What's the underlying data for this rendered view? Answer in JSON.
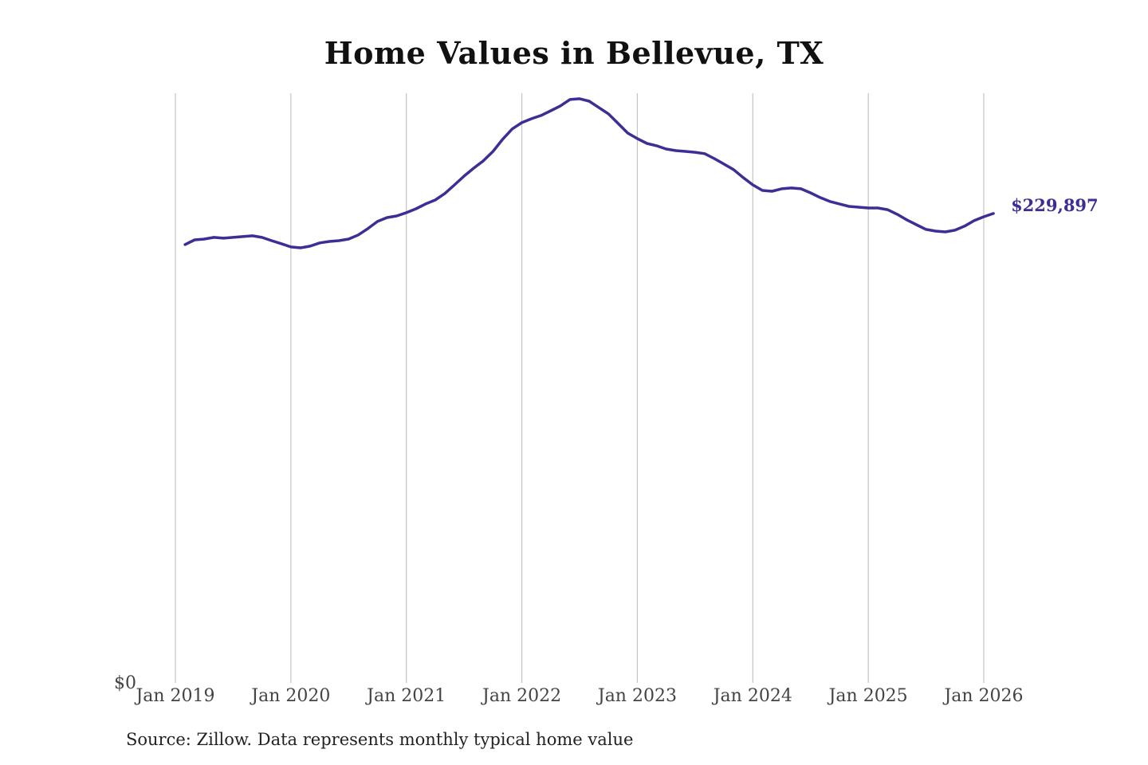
{
  "chart_data": {
    "type": "line",
    "title": "Home Values in Bellevue, TX",
    "xlabel": "",
    "ylabel": "",
    "source": "Source: Zillow. Data represents monthly typical home value",
    "ylim": [
      0,
      288800
    ],
    "y_tick_labels": [
      "$0"
    ],
    "x_tick_labels": [
      "Jan 2019",
      "Jan 2020",
      "Jan 2021",
      "Jan 2022",
      "Jan 2023",
      "Jan 2024",
      "Jan 2025",
      "Jan 2026"
    ],
    "grid": "vertical",
    "line_color": "#3b2f96",
    "end_label": "$229,897",
    "series": [
      {
        "name": "Typical home value",
        "start": "Feb 2019",
        "frequency": "monthly",
        "values": [
          214700,
          217000,
          217400,
          218200,
          217800,
          218200,
          218600,
          219000,
          218200,
          216600,
          215100,
          213500,
          213100,
          213900,
          215500,
          216200,
          216600,
          217400,
          219400,
          222500,
          226000,
          227900,
          228700,
          230300,
          232200,
          234600,
          236500,
          239700,
          243900,
          248200,
          252100,
          255700,
          260300,
          266200,
          271300,
          274400,
          276300,
          277900,
          280200,
          282600,
          285700,
          286100,
          284900,
          281800,
          278700,
          274000,
          269300,
          266600,
          264200,
          263100,
          261500,
          260700,
          260300,
          259900,
          259200,
          256800,
          254100,
          251400,
          247500,
          243900,
          241200,
          240800,
          242000,
          242400,
          242000,
          240000,
          237700,
          235800,
          234600,
          233400,
          233000,
          232600,
          232600,
          231800,
          229500,
          226800,
          224400,
          222100,
          221300,
          220900,
          221700,
          223700,
          226400,
          228300,
          229897
        ]
      }
    ]
  }
}
